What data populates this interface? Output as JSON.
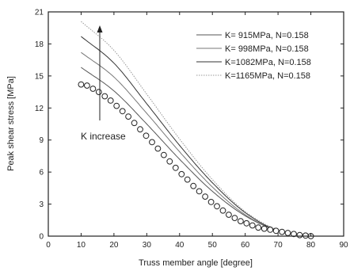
{
  "chart_data": {
    "type": "line",
    "xlabel": "Truss member angle [degree]",
    "ylabel": "Peak shear stress [MPa]",
    "xlim": [
      0,
      90
    ],
    "ylim": [
      0,
      21
    ],
    "x_ticks": [
      "0",
      "10",
      "20",
      "30",
      "40",
      "50",
      "60",
      "70",
      "80",
      "90"
    ],
    "y_ticks": [
      "0",
      "3",
      "6",
      "9",
      "12",
      "15",
      "18",
      "21"
    ],
    "grid": false,
    "legend_position": "top-right",
    "legend": [
      "K=  915MPa, N=0.158",
      "K=  998MPa, N=0.158",
      "K=1082MPa, N=0.158",
      "K=1165MPa, N=0.158"
    ],
    "annotation": "K increase",
    "x": [
      10,
      20,
      30,
      40,
      50,
      60,
      70,
      80
    ],
    "series": [
      {
        "name": "K=  915MPa, N=0.158",
        "values": [
          15.8,
          13.6,
          10.5,
          7.2,
          4.2,
          1.9,
          0.5,
          0.0
        ]
      },
      {
        "name": "K=  998MPa, N=0.158",
        "values": [
          17.2,
          14.9,
          11.5,
          7.9,
          4.6,
          2.0,
          0.5,
          0.0
        ]
      },
      {
        "name": "K=1082MPa, N=0.158",
        "values": [
          18.7,
          16.2,
          12.4,
          8.5,
          5.0,
          2.2,
          0.5,
          0.0
        ]
      },
      {
        "name": "K=1165MPa, N=0.158",
        "values": [
          20.1,
          17.4,
          13.3,
          9.1,
          5.3,
          2.3,
          0.6,
          0.0
        ]
      }
    ],
    "markers": {
      "x": [
        10,
        11.8,
        13.6,
        15.4,
        17.2,
        19,
        20.8,
        22.6,
        24.4,
        26.2,
        28,
        29.8,
        31.6,
        33.4,
        35.2,
        37,
        38.8,
        40.6,
        42.4,
        44.2,
        46,
        47.8,
        49.6,
        51.4,
        53.2,
        55,
        56.8,
        58.6,
        60.4,
        62.2,
        64,
        65.8,
        67.6,
        69.4,
        71.2,
        73,
        74.8,
        76.6,
        78.4,
        80
      ],
      "y": [
        14.2,
        14.1,
        13.8,
        13.5,
        13.1,
        12.7,
        12.2,
        11.7,
        11.2,
        10.6,
        10.0,
        9.4,
        8.8,
        8.2,
        7.6,
        7.0,
        6.4,
        5.8,
        5.3,
        4.7,
        4.2,
        3.7,
        3.2,
        2.8,
        2.4,
        2.0,
        1.7,
        1.4,
        1.2,
        1.0,
        0.8,
        0.7,
        0.6,
        0.5,
        0.4,
        0.3,
        0.2,
        0.1,
        0.05,
        0.0
      ]
    }
  }
}
